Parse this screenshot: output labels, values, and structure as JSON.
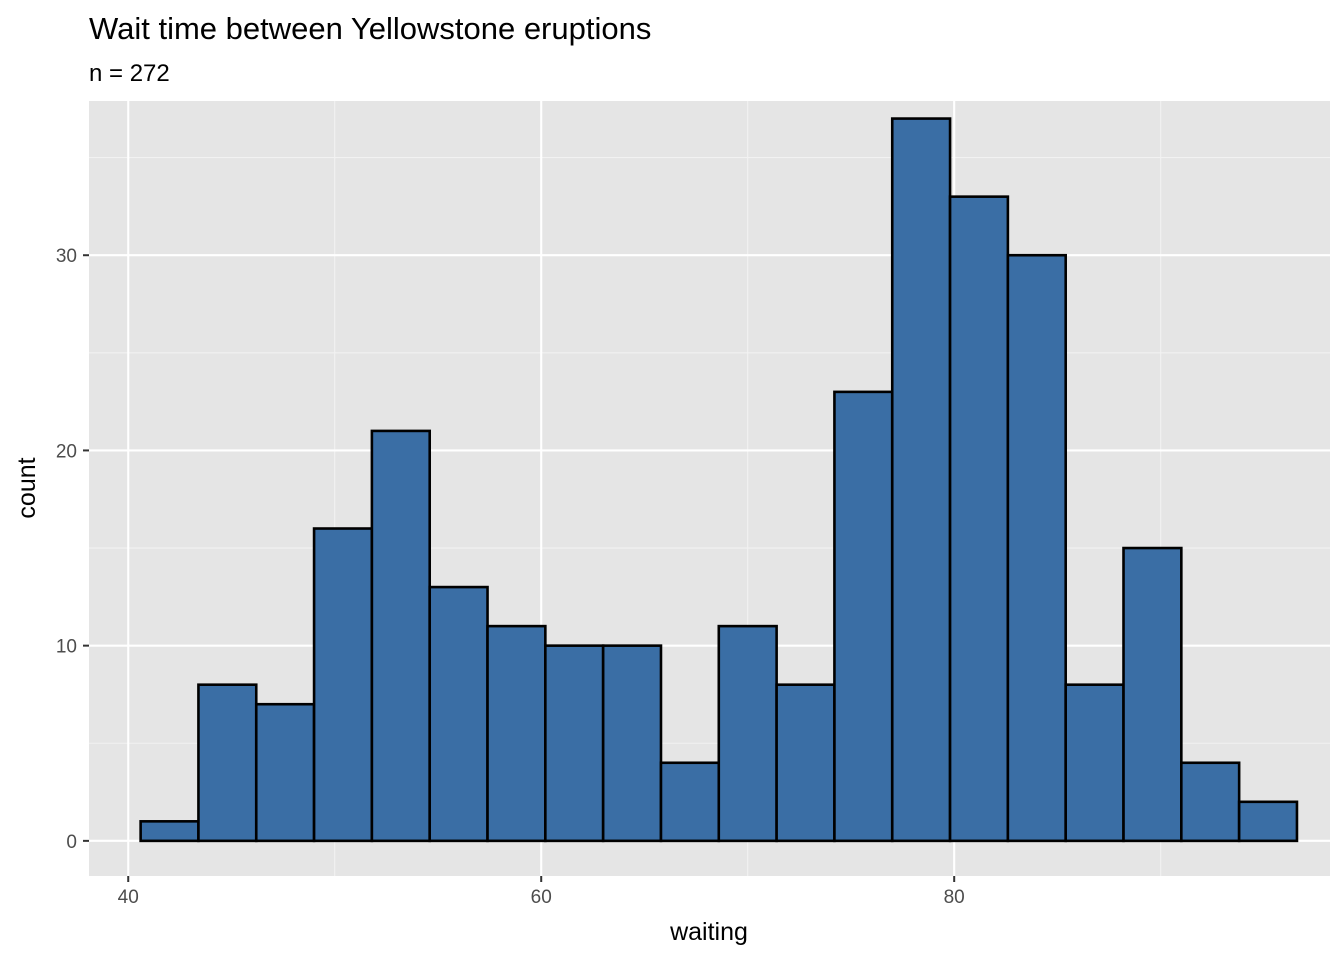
{
  "chart_data": {
    "type": "bar",
    "title": "Wait time between Yellowstone eruptions",
    "subtitle": "n = 272",
    "xlabel": "waiting",
    "ylabel": "count",
    "xlim": [
      38.1,
      98.2
    ],
    "ylim": [
      -1.8,
      37.9
    ],
    "x_ticks": [
      40,
      60,
      80
    ],
    "y_ticks": [
      0,
      10,
      20,
      30
    ],
    "bin_width": 2.8,
    "bin_centers": [
      42.0,
      44.8,
      47.6,
      50.4,
      53.2,
      56.0,
      58.8,
      61.6,
      64.4,
      67.2,
      70.0,
      72.8,
      75.6,
      78.4,
      81.2,
      84.0,
      86.8,
      89.6,
      92.4,
      95.2
    ],
    "values": [
      1,
      8,
      7,
      16,
      21,
      13,
      11,
      10,
      10,
      4,
      11,
      8,
      23,
      37,
      33,
      30,
      8,
      15,
      4,
      2
    ],
    "grid": true,
    "colors": {
      "bar_fill": "#3a6ea5",
      "bar_stroke": "#000000",
      "panel_background": "#e5e5e5",
      "grid_major": "#ffffff",
      "grid_minor": "#f2f2f2"
    }
  }
}
